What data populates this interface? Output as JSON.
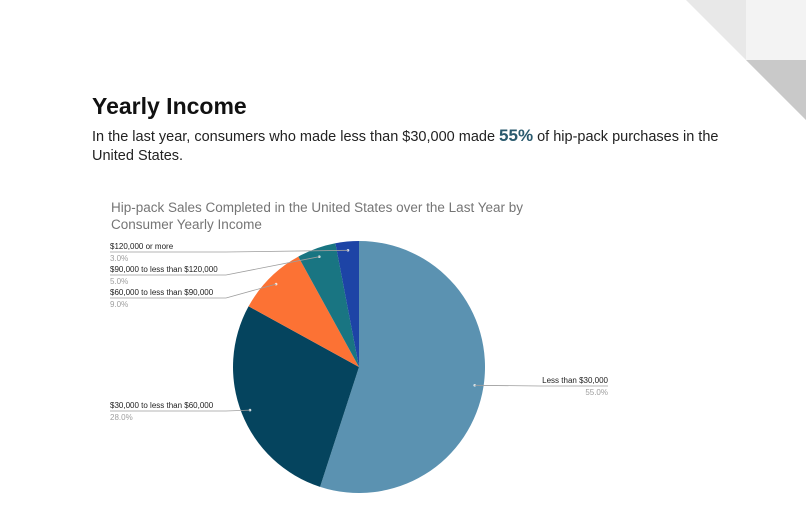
{
  "page": {
    "title": "Yearly Income",
    "subtitle_before": "In the last year, consumers who made less than $30,000 made ",
    "subtitle_highlight": "55%",
    "subtitle_after": " of hip-pack purchases in the United States."
  },
  "colors": {
    "highlight": "#2a5a6e",
    "corner_light": "#e8e8e8",
    "corner_mid": "#c9c9c9"
  },
  "chart_data": {
    "type": "pie",
    "title": "Hip-pack Sales Completed in the United States over the Last Year by Consumer Yearly Income",
    "start_angle_deg": 0,
    "direction": "clockwise",
    "slices": [
      {
        "label": "Less than $30,000",
        "value": 55.0,
        "value_label": "55.0%",
        "color": "#5b92b1"
      },
      {
        "label": "$30,000 to less than $60,000",
        "value": 28.0,
        "value_label": "28.0%",
        "color": "#05445e"
      },
      {
        "label": "$60,000 to less than $90,000",
        "value": 9.0,
        "value_label": "9.0%",
        "color": "#fc7234"
      },
      {
        "label": "$90,000 to less than $120,000",
        "value": 5.0,
        "value_label": "5.0%",
        "color": "#197582"
      },
      {
        "label": "$120,000 or more",
        "value": 3.0,
        "value_label": "3.0%",
        "color": "#1d44a6"
      }
    ]
  }
}
